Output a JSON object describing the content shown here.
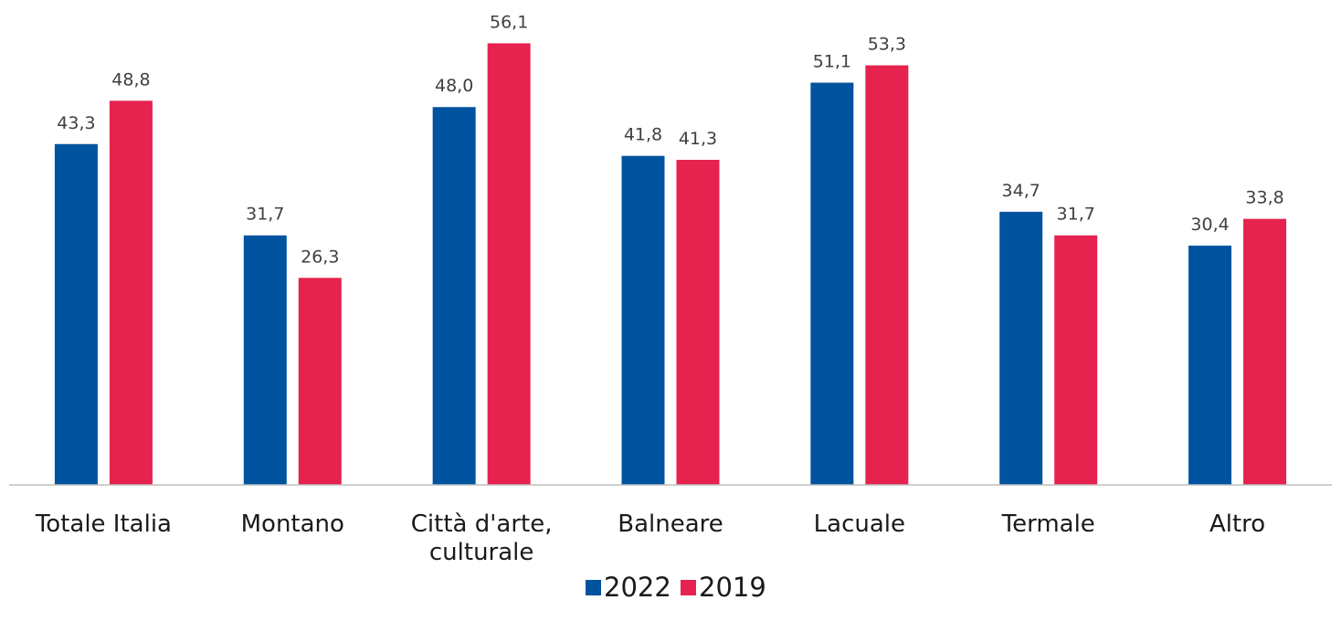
{
  "chart_data": {
    "type": "bar",
    "categories": [
      [
        "Totale Italia"
      ],
      [
        "Montano"
      ],
      [
        "Città d'arte,",
        "culturale"
      ],
      [
        "Balneare"
      ],
      [
        "Lacuale"
      ],
      [
        "Termale"
      ],
      [
        "Altro"
      ]
    ],
    "series": [
      {
        "name": "2022",
        "color": "#00539F",
        "values": [
          43.3,
          31.7,
          48.0,
          41.8,
          51.1,
          34.7,
          30.4
        ],
        "labels": [
          "43,3",
          "31,7",
          "48,0",
          "41,8",
          "51,1",
          "34,7",
          "30,4"
        ]
      },
      {
        "name": "2019",
        "color": "#E6224F",
        "values": [
          48.8,
          26.3,
          56.1,
          41.3,
          53.3,
          31.7,
          33.8
        ],
        "labels": [
          "48,8",
          "26,3",
          "56,1",
          "41,3",
          "53,3",
          "31,7",
          "33,8"
        ]
      }
    ],
    "ylim": [
      0,
      60
    ],
    "grid": false,
    "legend_position": "bottom",
    "axis_color": "#bfbfbf"
  }
}
